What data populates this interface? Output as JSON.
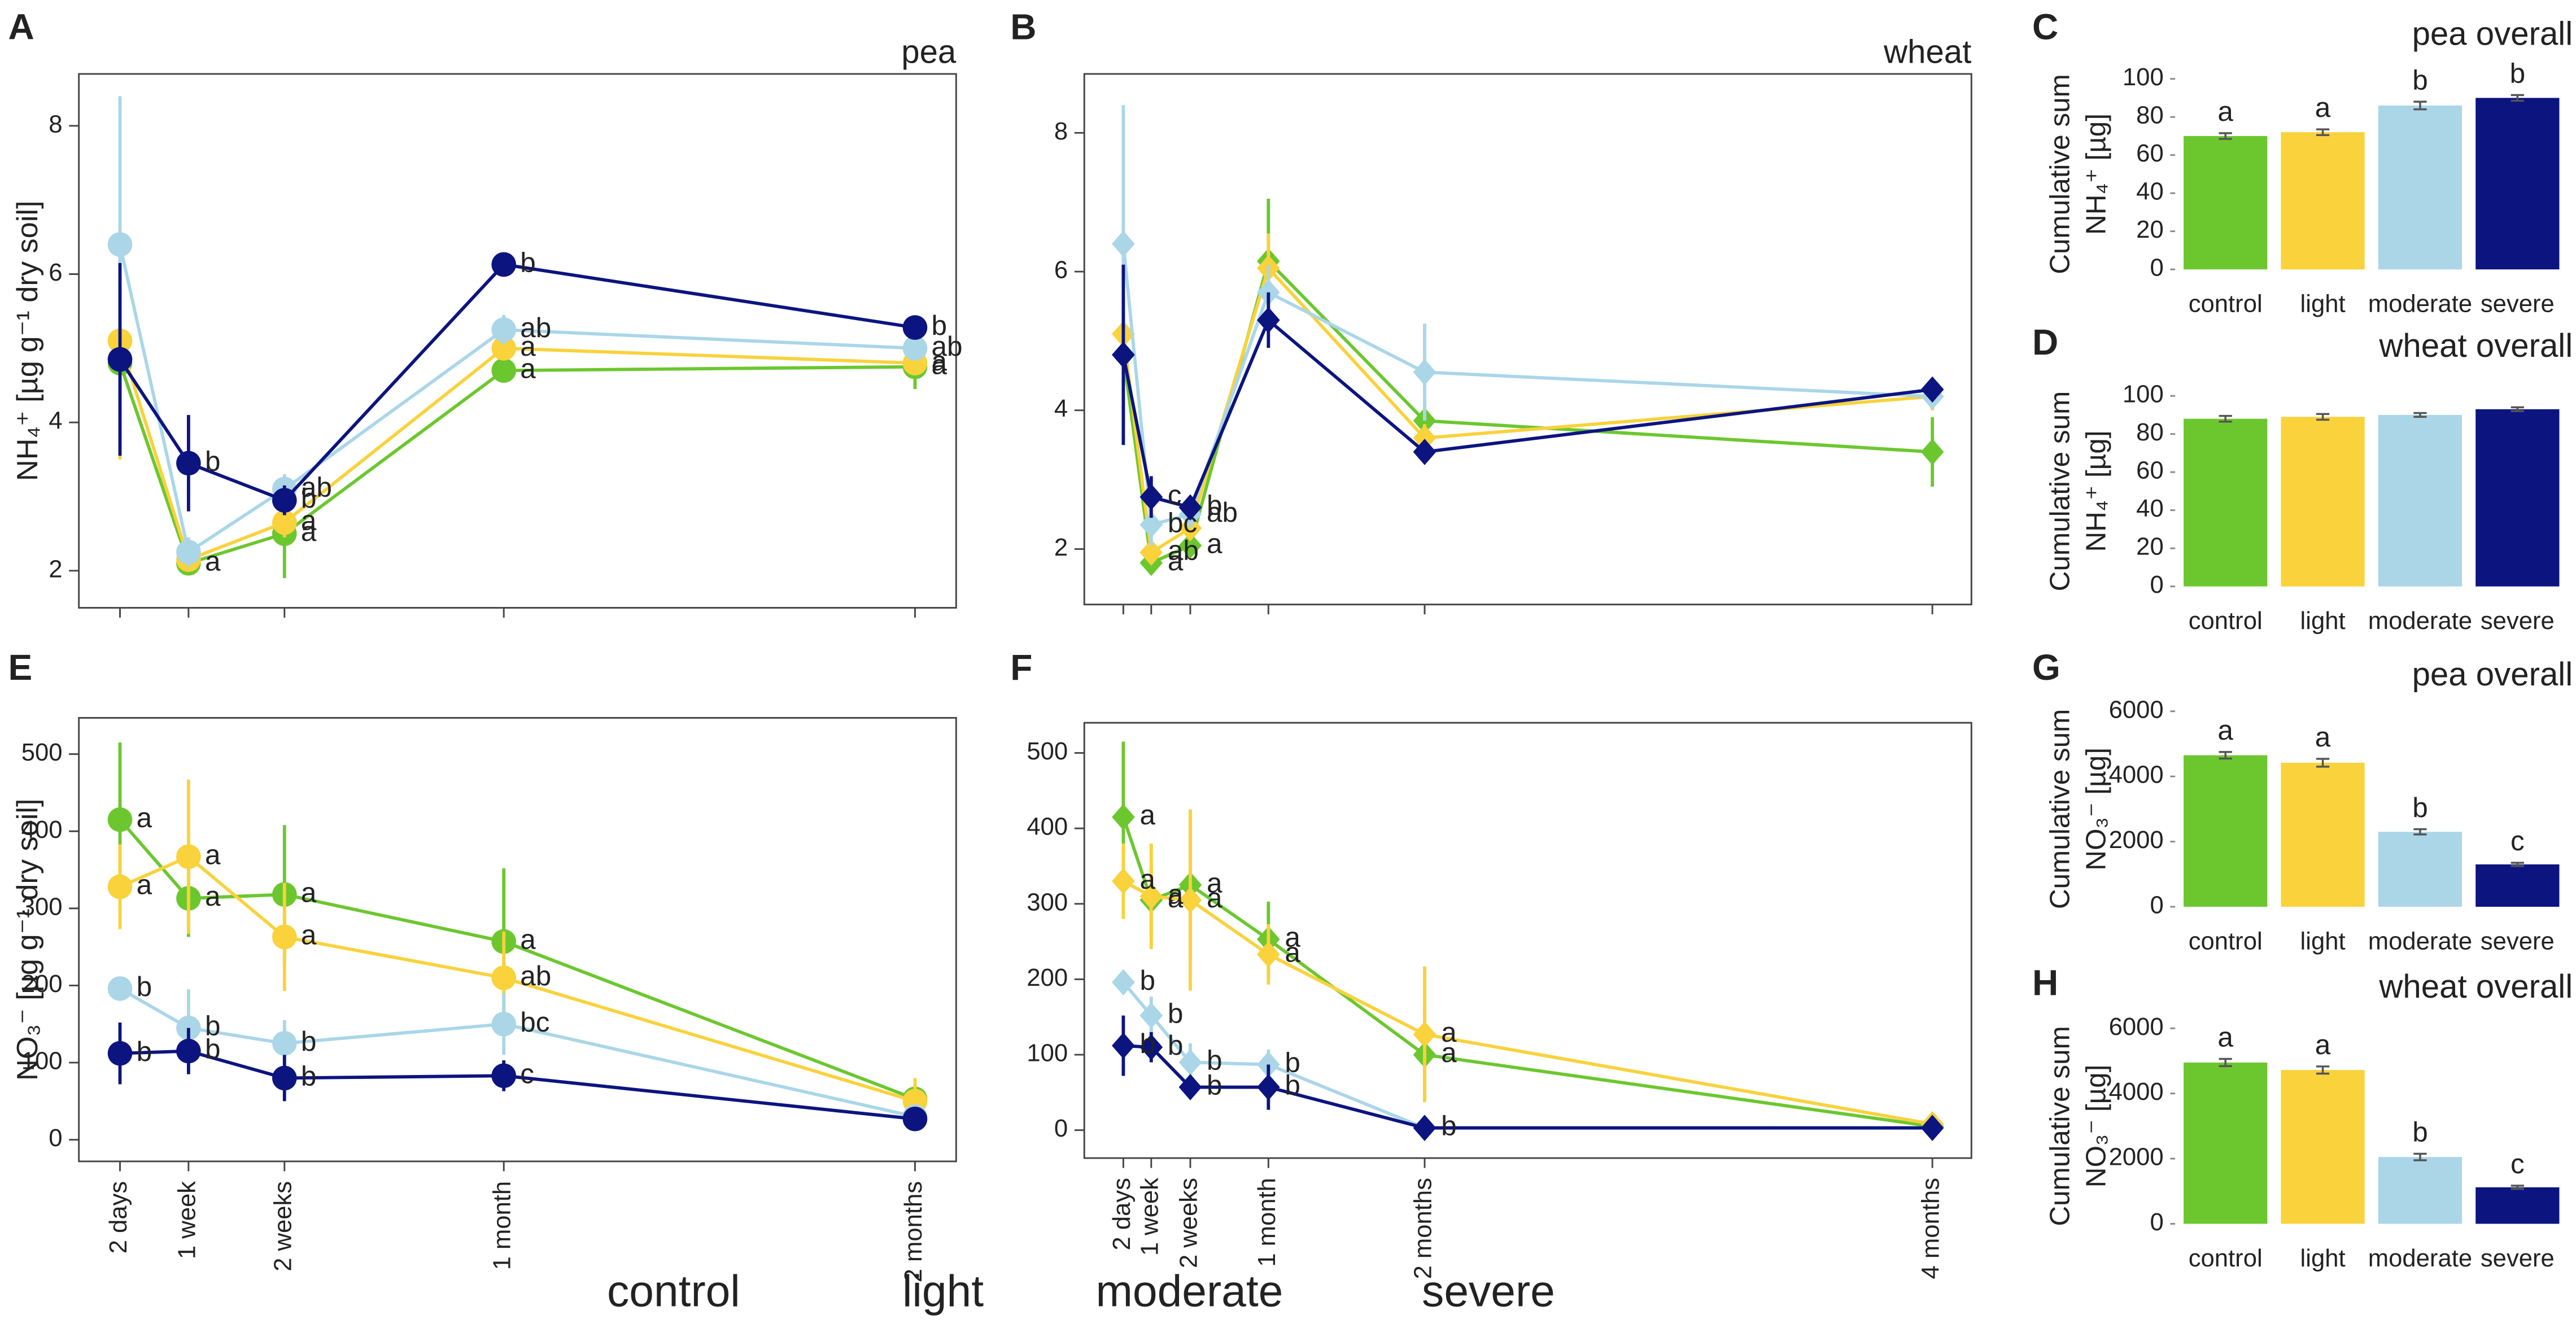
{
  "chart_data": [
    {
      "type": "line",
      "label": "A",
      "title": "pea",
      "ylabel": "NH₄⁺ [µg g⁻¹ dry soil]",
      "marker": "circle",
      "x": [
        2,
        7,
        14,
        30,
        60
      ],
      "xlim": [
        -1,
        63
      ],
      "xticks": [
        2,
        7,
        14,
        30,
        60
      ],
      "ylim": [
        1.5,
        8.7
      ],
      "yticks": [
        2,
        4,
        6,
        8
      ],
      "series": [
        {
          "name": "control",
          "color": "#6cc72f",
          "values": [
            4.8,
            2.1,
            2.5,
            4.7,
            4.75
          ],
          "errors": [
            0.3,
            0.1,
            0.6,
            0.15,
            0.3
          ],
          "letters": [
            null,
            "a",
            "a",
            "a",
            "a"
          ]
        },
        {
          "name": "light",
          "color": "#f9d23c",
          "values": [
            5.1,
            2.15,
            2.65,
            5.0,
            4.8
          ],
          "errors": [
            1.6,
            0.1,
            0.2,
            0.15,
            0.15
          ],
          "letters": [
            null,
            null,
            "a",
            "a",
            "a"
          ]
        },
        {
          "name": "moderate",
          "color": "#aad6e8",
          "values": [
            6.4,
            2.25,
            3.1,
            5.25,
            5.0
          ],
          "errors": [
            2.0,
            0.2,
            0.2,
            0.2,
            0.15
          ],
          "letters": [
            null,
            null,
            "ab",
            "ab",
            "ab"
          ]
        },
        {
          "name": "severe",
          "color": "#0c1480",
          "values": [
            4.85,
            3.45,
            2.95,
            6.13,
            5.28
          ],
          "errors": [
            1.3,
            0.65,
            0.2,
            0.1,
            0.15
          ],
          "letters": [
            null,
            "b",
            "b",
            "b",
            "b"
          ]
        }
      ]
    },
    {
      "type": "line",
      "label": "B",
      "title": "wheat",
      "marker": "diamond",
      "x": [
        2,
        7,
        14,
        28,
        56,
        147
      ],
      "xlim": [
        -5,
        154
      ],
      "xticks": [
        2,
        7,
        14,
        28,
        56,
        147
      ],
      "ylim": [
        1.2,
        8.85
      ],
      "yticks": [
        2,
        4,
        6,
        8
      ],
      "series": [
        {
          "name": "control",
          "color": "#6cc72f",
          "values": [
            4.8,
            1.8,
            2.05,
            6.15,
            3.85,
            3.4
          ],
          "errors": [
            0.2,
            0.1,
            0.15,
            0.9,
            0.3,
            0.5
          ],
          "letters": [
            null,
            "a",
            "a",
            null,
            null,
            null
          ]
        },
        {
          "name": "light",
          "color": "#f9d23c",
          "values": [
            5.1,
            1.95,
            2.3,
            6.05,
            3.6,
            4.2
          ],
          "errors": [
            1.5,
            0.1,
            0.15,
            0.5,
            0.2,
            0.2
          ],
          "letters": [
            null,
            "ab",
            null,
            null,
            null,
            null
          ]
        },
        {
          "name": "moderate",
          "color": "#aad6e8",
          "values": [
            6.4,
            2.35,
            2.5,
            5.7,
            4.55,
            4.2
          ],
          "errors": [
            2.0,
            0.3,
            0.2,
            0.4,
            0.7,
            0.1
          ],
          "letters": [
            null,
            "bc",
            "ab",
            null,
            null,
            null
          ]
        },
        {
          "name": "severe",
          "color": "#0c1480",
          "values": [
            4.8,
            2.75,
            2.6,
            5.3,
            3.4,
            4.3
          ],
          "errors": [
            1.3,
            0.3,
            0.15,
            0.4,
            0.1,
            0.1
          ],
          "letters": [
            null,
            "c",
            "b",
            null,
            null,
            null
          ]
        }
      ]
    },
    {
      "type": "bar",
      "label": "C",
      "title": "pea overall",
      "ylabel": [
        "Cumulative sum",
        "NH₄⁺ [µg]"
      ],
      "categories": [
        "control",
        "light",
        "moderate",
        "severe"
      ],
      "values": [
        70,
        72,
        86,
        90
      ],
      "errors": [
        1.5,
        1.5,
        2,
        1.5
      ],
      "letters": [
        "a",
        "a",
        "b",
        "b"
      ],
      "colors": [
        "#6cc72f",
        "#f9d23c",
        "#aad6e8",
        "#0c1480"
      ],
      "ylim": [
        0,
        100
      ],
      "yticks": [
        0,
        20,
        40,
        60,
        80,
        100
      ]
    },
    {
      "type": "bar",
      "label": "D",
      "title": "wheat overall",
      "ylabel": [
        "Cumulative sum",
        "NH₄⁺ [µg]"
      ],
      "categories": [
        "control",
        "light",
        "moderate",
        "severe"
      ],
      "values": [
        88,
        89,
        90,
        93
      ],
      "errors": [
        1.5,
        1.5,
        1,
        1
      ],
      "colors": [
        "#6cc72f",
        "#f9d23c",
        "#aad6e8",
        "#0c1480"
      ],
      "ylim": [
        0,
        100
      ],
      "yticks": [
        0,
        20,
        40,
        60,
        80,
        100
      ]
    },
    {
      "type": "line",
      "label": "E",
      "ylabel": "NO₃⁻ [µg g⁻¹ dry soil]",
      "marker": "circle",
      "x": [
        2,
        7,
        14,
        30,
        60
      ],
      "xlim": [
        -1,
        63
      ],
      "xticks": [
        {
          "value": 2,
          "label": "2 days"
        },
        {
          "value": 7,
          "label": "1 week"
        },
        {
          "value": 14,
          "label": "2 weeks"
        },
        {
          "value": 30,
          "label": "1 month"
        },
        {
          "value": 60,
          "label": "2 months"
        }
      ],
      "ylim": [
        -28,
        547
      ],
      "yticks": [
        0,
        100,
        200,
        300,
        400,
        500
      ],
      "series": [
        {
          "name": "control",
          "color": "#6cc72f",
          "values": [
            415,
            313,
            318,
            257,
            53
          ],
          "errors": [
            100,
            50,
            90,
            95,
            20
          ],
          "letters": [
            "a",
            "a",
            "a",
            "a",
            null
          ]
        },
        {
          "name": "light",
          "color": "#f9d23c",
          "values": [
            328,
            367,
            263,
            210,
            50
          ],
          "errors": [
            55,
            100,
            70,
            60,
            30
          ],
          "letters": [
            "a",
            "a",
            "a",
            "ab",
            null
          ]
        },
        {
          "name": "moderate",
          "color": "#aad6e8",
          "values": [
            196,
            145,
            125,
            150,
            30
          ],
          "errors": [
            15,
            50,
            30,
            40,
            10
          ],
          "letters": [
            "b",
            "b",
            "b",
            "bc",
            null
          ]
        },
        {
          "name": "severe",
          "color": "#0c1480",
          "values": [
            112,
            115,
            80,
            83,
            27
          ],
          "errors": [
            40,
            30,
            30,
            20,
            8
          ],
          "letters": [
            "b",
            "b",
            "b",
            "c",
            null
          ]
        }
      ]
    },
    {
      "type": "line",
      "label": "F",
      "marker": "diamond",
      "x": [
        2,
        7,
        14,
        28,
        56,
        147
      ],
      "xlim": [
        -5,
        154
      ],
      "xticks": [
        {
          "value": 2,
          "label": "2 days"
        },
        {
          "value": 7,
          "label": "1 week"
        },
        {
          "value": 14,
          "label": "2 weeks"
        },
        {
          "value": 28,
          "label": "1 month"
        },
        {
          "value": 56,
          "label": "2 months"
        },
        {
          "value": 147,
          "label": "4 months"
        }
      ],
      "ylim": [
        -37,
        540
      ],
      "yticks": [
        0,
        100,
        200,
        300,
        400,
        500
      ],
      "series": [
        {
          "name": "control",
          "color": "#6cc72f",
          "values": [
            415,
            305,
            325,
            253,
            100,
            5
          ],
          "errors": [
            100,
            50,
            100,
            50,
            60,
            5
          ],
          "letters": [
            "a",
            "a",
            "a",
            "a",
            "a",
            null
          ]
        },
        {
          "name": "light",
          "color": "#f9d23c",
          "values": [
            330,
            310,
            305,
            233,
            127,
            8
          ],
          "errors": [
            50,
            70,
            120,
            40,
            90,
            5
          ],
          "letters": [
            "a",
            "a",
            "a",
            "a",
            "a",
            null
          ]
        },
        {
          "name": "moderate",
          "color": "#aad6e8",
          "values": [
            196,
            152,
            90,
            87,
            3,
            3
          ],
          "errors": [
            15,
            25,
            25,
            20,
            5,
            5
          ],
          "letters": [
            "b",
            "b",
            "b",
            "b",
            null,
            null
          ]
        },
        {
          "name": "severe",
          "color": "#0c1480",
          "values": [
            112,
            110,
            57,
            57,
            3,
            3
          ],
          "errors": [
            40,
            20,
            15,
            30,
            3,
            3
          ],
          "letters": [
            "b",
            "b",
            "b",
            "b",
            "b",
            null
          ]
        }
      ]
    },
    {
      "type": "bar",
      "label": "G",
      "title": "pea overall",
      "ylabel": [
        "Cumulative sum",
        "NO₃⁻ [µg]"
      ],
      "categories": [
        "control",
        "light",
        "moderate",
        "severe"
      ],
      "values": [
        4650,
        4420,
        2300,
        1300
      ],
      "errors": [
        100,
        120,
        80,
        50
      ],
      "letters": [
        "a",
        "a",
        "b",
        "c"
      ],
      "colors": [
        "#6cc72f",
        "#f9d23c",
        "#aad6e8",
        "#0c1480"
      ],
      "ylim": [
        0,
        6000
      ],
      "yticks": [
        0,
        2000,
        4000,
        6000
      ]
    },
    {
      "type": "bar",
      "label": "H",
      "title": "wheat overall",
      "ylabel": [
        "Cumulative sum",
        "NO₃⁻ [µg]"
      ],
      "categories": [
        "control",
        "light",
        "moderate",
        "severe"
      ],
      "values": [
        4950,
        4720,
        2050,
        1120
      ],
      "errors": [
        110,
        110,
        100,
        50
      ],
      "letters": [
        "a",
        "a",
        "b",
        "c"
      ],
      "colors": [
        "#6cc72f",
        "#f9d23c",
        "#aad6e8",
        "#0c1480"
      ],
      "ylim": [
        0,
        6000
      ],
      "yticks": [
        0,
        2000,
        4000,
        6000
      ]
    }
  ]
}
